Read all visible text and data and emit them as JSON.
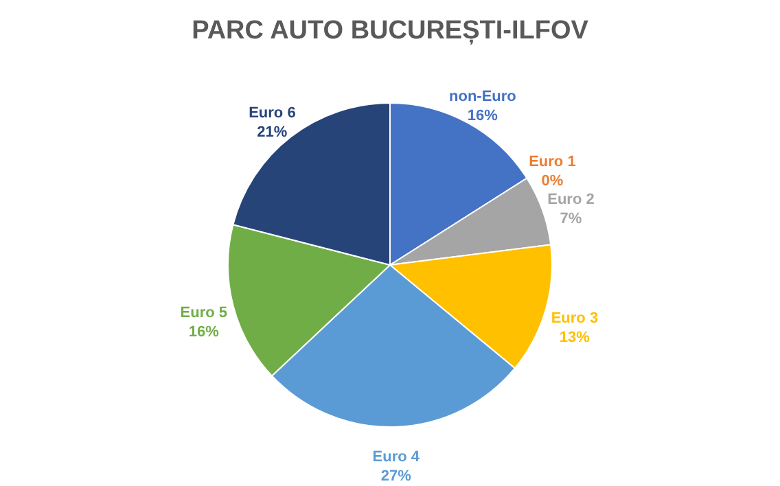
{
  "chart_data": {
    "type": "pie",
    "title": "PARC AUTO BUCUREȘTI-ILFOV",
    "categories": [
      "non-Euro",
      "Euro 1",
      "Euro 2",
      "Euro 3",
      "Euro 4",
      "Euro 5",
      "Euro 6"
    ],
    "values": [
      16,
      0,
      7,
      13,
      27,
      16,
      21
    ],
    "value_labels": [
      "16%",
      "0%",
      "7%",
      "13%",
      "27%",
      "16%",
      "21%"
    ],
    "colors": [
      "#4472c4",
      "#ed7d31",
      "#a5a5a5",
      "#ffc000",
      "#5b9bd5",
      "#70ad47",
      "#264478"
    ],
    "legend": false
  }
}
